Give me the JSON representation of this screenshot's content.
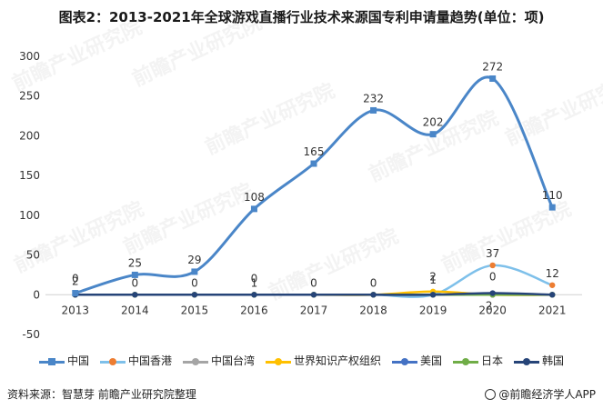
{
  "title": "图表2：2013-2021年全球游戏直播行业技术来源国专利申请量趋势(单位：项)",
  "footer": {
    "source": "资料来源：智慧芽 前瞻产业研究院整理",
    "brand": "@前瞻经济学人APP"
  },
  "watermark": "前瞻产业研究院",
  "chart_data": {
    "type": "line",
    "categories": [
      "2013",
      "2014",
      "2015",
      "2016",
      "2017",
      "2018",
      "2019",
      "2020",
      "2021"
    ],
    "ylim": [
      -50,
      300
    ],
    "yticks": [
      -50,
      0,
      50,
      100,
      150,
      200,
      250,
      300
    ],
    "grid": false,
    "legend": "bottom",
    "series": [
      {
        "name": "中国",
        "color": "#4a86c8",
        "marker": "square",
        "values": [
          2,
          25,
          29,
          108,
          165,
          232,
          202,
          272,
          110
        ],
        "labels": true
      },
      {
        "name": "中国香港",
        "color": "#ed7d31",
        "light_color": "#7ec0ea",
        "marker": "circle",
        "values": [
          0,
          0,
          0,
          0,
          0,
          0,
          0,
          37,
          12
        ],
        "labels": false
      },
      {
        "name": "中国台湾",
        "color": "#a5a5a5",
        "marker": "circle",
        "values": [
          0,
          0,
          0,
          0,
          0,
          0,
          0,
          0,
          0
        ],
        "labels": false
      },
      {
        "name": "世界知识产权组织",
        "color": "#ffc000",
        "marker": "circle",
        "values": [
          0,
          0,
          0,
          0,
          0,
          0,
          4,
          0,
          0
        ],
        "labels": false
      },
      {
        "name": "美国",
        "color": "#4472c4",
        "marker": "circle",
        "values": [
          0,
          0,
          0,
          0,
          0,
          0,
          0,
          0,
          0
        ],
        "labels": false
      },
      {
        "name": "日本",
        "color": "#70ad47",
        "marker": "circle",
        "values": [
          0,
          0,
          0,
          0,
          0,
          0,
          0,
          0,
          0
        ],
        "labels": false
      },
      {
        "name": "韩国",
        "color": "#264478",
        "marker": "circle",
        "values": [
          0,
          0,
          0,
          0,
          0,
          0,
          0,
          2,
          0
        ],
        "labels": false
      }
    ],
    "annotations": [
      {
        "text": "2",
        "x": "2013",
        "y": 2
      },
      {
        "text": "0",
        "x": "2013",
        "y": 0
      },
      {
        "text": "0",
        "x": "2014",
        "y": 0
      },
      {
        "text": "0",
        "x": "2015",
        "y": 0
      },
      {
        "text": "1",
        "x": "2016",
        "y": 0
      },
      {
        "text": "0",
        "x": "2016",
        "y": 0
      },
      {
        "text": "0",
        "x": "2017",
        "y": 0
      },
      {
        "text": "0",
        "x": "2018",
        "y": 0
      },
      {
        "text": "1",
        "x": "2019",
        "y": 4
      },
      {
        "text": "2",
        "x": "2019",
        "y": 2
      },
      {
        "text": "37",
        "x": "2020",
        "y": 37
      },
      {
        "text": "0",
        "x": "2020",
        "y": 2
      },
      {
        "text": "2",
        "x": "2020",
        "y": 0
      },
      {
        "text": "12",
        "x": "2021",
        "y": 12
      }
    ]
  }
}
